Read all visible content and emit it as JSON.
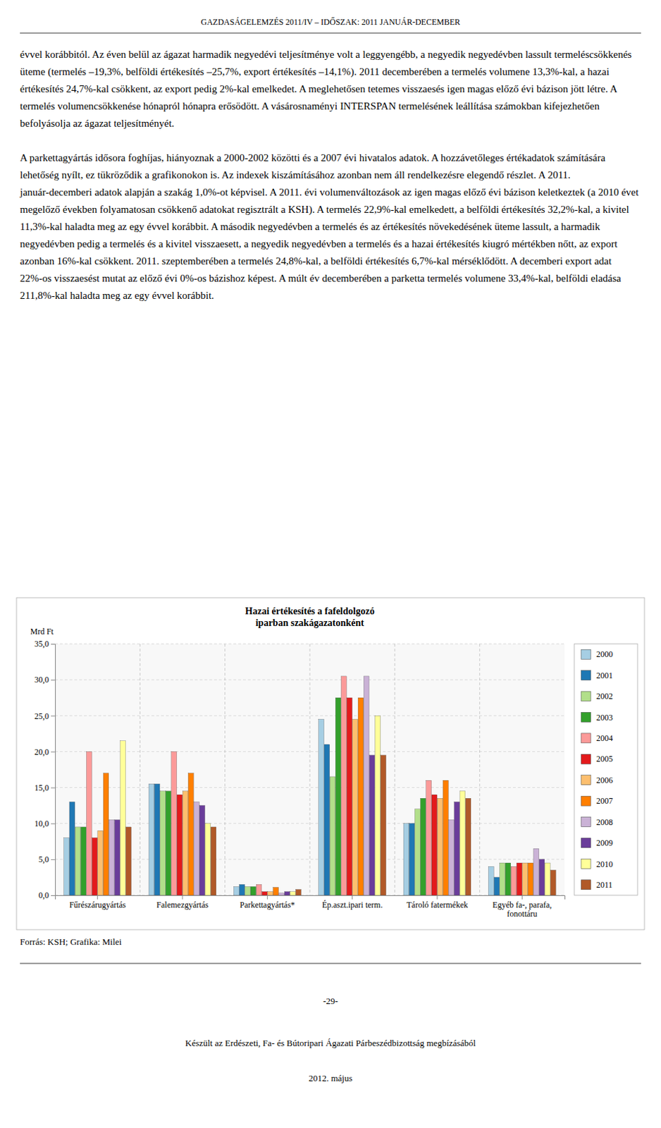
{
  "header": "GAZDASÁGELEMZÉS 2011/IV – IDŐSZAK: 2011 JANUÁR-DECEMBER",
  "body_paragraphs": [
    "évvel korábbitól. Az éven belül az ágazat harmadik negyedévi teljesítménye volt a leggyengébb, a negyedik negyedévben lassult termeléscsökkenés üteme (termelés –19,3%, belföldi értékesítés –25,7%, export értékesítés –14,1%). 2011 decemberében a termelés volumene 13,3%-kal, a hazai értékesítés 24,7%-kal csökkent, az export pedig 2%-kal emelkedet. A meglehetősen tetemes visszaesés igen magas előző évi bázison jött létre. A termelés volumencsökkenése hónapról hónapra erősödött. A vásárosnaményi INTERSPAN termelésének leállítása számokban kifejezhetően befolyásolja az ágazat teljesítményét.",
    "A parkettagyártás idősora foghíjas, hiányoznak a 2000-2002 közötti és a 2007 évi hivatalos adatok. A hozzávetőleges értékadatok számítására lehetőség nyílt, ez tükröződik a grafikonokon is. Az indexek kiszámításához azonban nem áll rendelkezésre elegendő részlet. A 2011. január-decemberi adatok alapján a szakág 1,0%-ot képvisel. A 2011. évi volumenváltozások az igen magas előző évi bázison keletkeztek (a 2010 évet megelőző években folyamatosan csökkenő adatokat regisztrált a KSH). A termelés 22,9%-kal emelkedett, a belföldi értékesítés 32,2%-kal, a kivitel 11,3%-kal haladta meg az egy évvel korábbit. A második negyedévben a termelés és az értékesítés növekedésének üteme lassult, a harmadik negyedévben pedig a termelés és a kivitel visszaesett, a negyedik negyedévben a termelés és a hazai értékesítés kiugró mértékben nőtt, az export azonban 16%-kal csökkent. 2011. szeptemberében a termelés 24,8%-kal, a belföldi értékesítés 6,7%-kal mérséklődött. A decemberi export adat 22%-os visszaesést mutat az előző évi 0%-os bázishoz képest. A múlt év decemberében a parketta termelés volumene 33,4%-kal, belföldi eladása 211,8%-kal haladta meg az egy évvel korábbit."
  ],
  "chart_data": {
    "type": "bar",
    "title": "Hazai értékesítés a fafeldolgozó\niparban szakágazatonként",
    "ylabel": "Mrd Ft",
    "categories": [
      "Fűrészárugyártás",
      "Falemezgyártás",
      "Parkettagyártás*",
      "Ép.aszt.ipari term.",
      "Tároló fatermékek",
      "Egyéb fa-, parafa,\nfonottáru"
    ],
    "series": [
      {
        "name": "2000",
        "values": [
          8.0,
          15.5,
          1.2,
          24.5,
          10.0,
          4.0
        ]
      },
      {
        "name": "2001",
        "values": [
          13.0,
          15.5,
          1.5,
          21.0,
          10.0,
          2.5
        ]
      },
      {
        "name": "2002",
        "values": [
          9.5,
          14.5,
          1.2,
          16.5,
          12.0,
          4.5
        ]
      },
      {
        "name": "2003",
        "values": [
          9.5,
          14.5,
          1.2,
          27.5,
          13.5,
          4.5
        ]
      },
      {
        "name": "2004",
        "values": [
          20.0,
          20.0,
          1.5,
          30.5,
          16.0,
          4.0
        ]
      },
      {
        "name": "2005",
        "values": [
          8.0,
          14.0,
          0.5,
          27.5,
          14.0,
          4.5
        ]
      },
      {
        "name": "2006",
        "values": [
          9.0,
          14.5,
          0.5,
          24.5,
          13.5,
          4.5
        ]
      },
      {
        "name": "2007",
        "values": [
          17.0,
          17.0,
          1.1,
          27.5,
          16.0,
          4.5
        ]
      },
      {
        "name": "2008",
        "values": [
          10.5,
          13.0,
          0.3,
          30.5,
          10.5,
          6.5
        ]
      },
      {
        "name": "2009",
        "values": [
          10.5,
          12.5,
          0.5,
          19.5,
          13.0,
          5.0
        ]
      },
      {
        "name": "2010",
        "values": [
          21.5,
          10.0,
          0.5,
          25.0,
          14.5,
          4.5
        ]
      },
      {
        "name": "2011",
        "values": [
          9.5,
          9.5,
          0.8,
          19.5,
          13.5,
          3.5
        ]
      }
    ],
    "ylim": [
      0,
      35
    ],
    "yticks": [
      {
        "value": 0,
        "label": "0,0"
      },
      {
        "value": 5,
        "label": "5,0"
      },
      {
        "value": 10,
        "label": "10,0"
      },
      {
        "value": 15,
        "label": "15,0"
      },
      {
        "value": 20,
        "label": "20,0"
      },
      {
        "value": 25,
        "label": "25,0"
      },
      {
        "value": 30,
        "label": "30,0"
      },
      {
        "value": 35,
        "label": "35,0"
      }
    ],
    "grid": true,
    "legend": "right"
  },
  "source": "Forrás: KSH; Grafika: Milei",
  "footer_page": "-29-",
  "footer_line": "Készült az Erdészeti, Fa- és Bútoripari Ágazati Párbeszédbizottság megbízásából",
  "footer_line2": "2012. május"
}
